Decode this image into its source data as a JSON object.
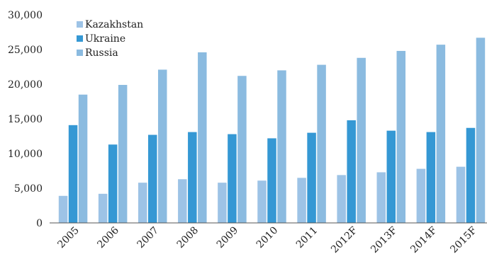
{
  "chart_data": {
    "type": "bar",
    "categories": [
      "2005",
      "2006",
      "2007",
      "2008",
      "2009",
      "2010",
      "2011",
      "2012F",
      "2013F",
      "2014F",
      "2015F"
    ],
    "series": [
      {
        "name": "Kazakhstan",
        "color": "#9dc3e6",
        "values": [
          3900,
          4200,
          5800,
          6300,
          5800,
          6100,
          6500,
          6900,
          7300,
          7800,
          8100
        ]
      },
      {
        "name": "Ukraine",
        "color": "#3598d4",
        "values": [
          14100,
          11300,
          12700,
          13100,
          12800,
          12200,
          13000,
          14800,
          13300,
          13100,
          13700
        ]
      },
      {
        "name": "Russia",
        "color": "#8bbbe0",
        "values": [
          18500,
          19900,
          22100,
          24600,
          21200,
          22000,
          22800,
          23800,
          24800,
          25700,
          26700
        ]
      }
    ],
    "ylim": [
      0,
      30000
    ],
    "yticks": [
      "0",
      "5,000",
      "10,000",
      "15,000",
      "20,000",
      "25,000",
      "30,000"
    ],
    "ytick_values": [
      0,
      5000,
      10000,
      15000,
      20000,
      25000,
      30000
    ],
    "xlabel": "",
    "ylabel": "",
    "title": "",
    "legend_position": "top-left",
    "grid": false
  }
}
